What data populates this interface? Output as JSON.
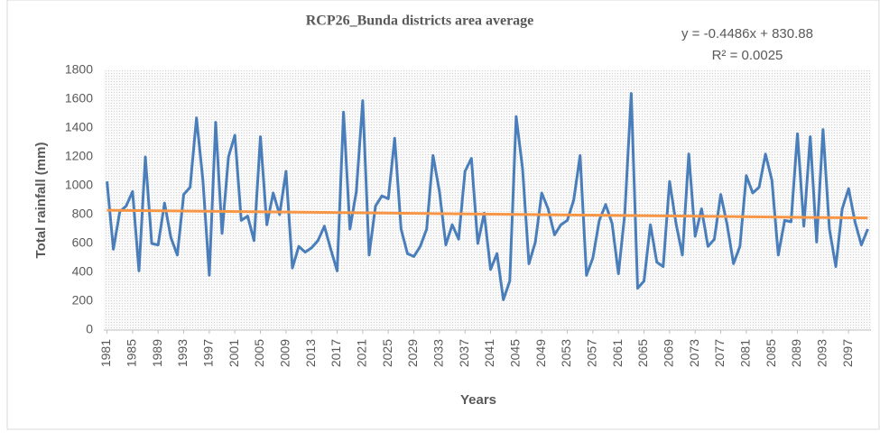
{
  "chart_data": {
    "type": "line",
    "title": "RCP26_Bunda districts area  average",
    "x_label": "Years",
    "y_label": "Total rainfall (mm)",
    "x": [
      1981,
      1982,
      1983,
      1984,
      1985,
      1986,
      1987,
      1988,
      1989,
      1990,
      1991,
      1992,
      1993,
      1994,
      1995,
      1996,
      1997,
      1998,
      1999,
      2000,
      2001,
      2002,
      2003,
      2004,
      2005,
      2006,
      2007,
      2008,
      2009,
      2010,
      2011,
      2012,
      2013,
      2014,
      2015,
      2016,
      2017,
      2018,
      2019,
      2020,
      2021,
      2022,
      2023,
      2024,
      2025,
      2026,
      2027,
      2028,
      2029,
      2030,
      2031,
      2032,
      2033,
      2034,
      2035,
      2036,
      2037,
      2038,
      2039,
      2040,
      2041,
      2042,
      2043,
      2044,
      2045,
      2046,
      2047,
      2048,
      2049,
      2050,
      2051,
      2052,
      2053,
      2054,
      2055,
      2056,
      2057,
      2058,
      2059,
      2060,
      2061,
      2062,
      2063,
      2064,
      2065,
      2066,
      2067,
      2068,
      2069,
      2070,
      2071,
      2072,
      2073,
      2074,
      2075,
      2076,
      2077,
      2078,
      2079,
      2080,
      2081,
      2082,
      2083,
      2084,
      2085,
      2086,
      2087,
      2088,
      2089,
      2090,
      2091,
      2092,
      2093,
      2094,
      2095,
      2096,
      2097,
      2098,
      2099,
      2100
    ],
    "series": [
      {
        "name": "Total rainfall",
        "color": "#4a7ebb",
        "values": [
          1030,
          560,
          820,
          860,
          960,
          410,
          1200,
          600,
          590,
          880,
          640,
          520,
          940,
          990,
          1470,
          1040,
          380,
          1440,
          670,
          1200,
          1350,
          760,
          790,
          620,
          1340,
          730,
          950,
          800,
          1100,
          430,
          580,
          540,
          570,
          620,
          720,
          560,
          410,
          1510,
          700,
          960,
          1590,
          520,
          860,
          930,
          910,
          1330,
          700,
          530,
          510,
          580,
          700,
          1210,
          960,
          590,
          730,
          630,
          1100,
          1190,
          600,
          810,
          420,
          530,
          210,
          340,
          1480,
          1120,
          460,
          610,
          950,
          840,
          660,
          730,
          760,
          900,
          1210,
          380,
          500,
          760,
          870,
          740,
          390,
          810,
          1640,
          290,
          340,
          730,
          470,
          440,
          1030,
          740,
          520,
          1220,
          650,
          840,
          580,
          630,
          940,
          730,
          460,
          580,
          1070,
          950,
          990,
          1220,
          1040,
          520,
          760,
          750,
          1360,
          720,
          1340,
          610,
          1390,
          700,
          440,
          840,
          980,
          750,
          590,
          700
        ]
      }
    ],
    "trendline": {
      "color": "#f79646",
      "slope": -0.4486,
      "intercept": 830.88,
      "equation": "y = -0.4486x + 830.88",
      "r2": "R² = 0.0025"
    },
    "xlim": [
      1980.5,
      2100.5
    ],
    "xticks": [
      1981,
      1985,
      1989,
      1993,
      1997,
      2001,
      2005,
      2009,
      2013,
      2017,
      2021,
      2025,
      2029,
      2033,
      2037,
      2041,
      2045,
      2049,
      2053,
      2057,
      2061,
      2065,
      2069,
      2073,
      2077,
      2081,
      2085,
      2089,
      2093,
      2097
    ],
    "ylim": [
      0,
      1800
    ],
    "yticks": [
      0,
      200,
      400,
      600,
      800,
      1000,
      1200,
      1400,
      1600,
      1800
    ],
    "grid": false
  }
}
